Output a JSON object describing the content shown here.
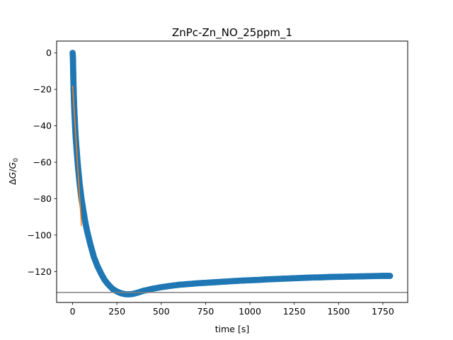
{
  "chart_data": {
    "type": "scatter",
    "title": "ZnPc-Zn_NO_25ppm_1",
    "xlabel": "time [s]",
    "ylabel_parts": [
      "Δ",
      "G",
      "/",
      "G",
      "0"
    ],
    "xlim": [
      -90,
      1890
    ],
    "ylim": [
      -137,
      6.5
    ],
    "xticks": [
      0,
      250,
      500,
      750,
      1000,
      1250,
      1500,
      1750
    ],
    "yticks": [
      0,
      -20,
      -40,
      -60,
      -80,
      -100,
      -120
    ],
    "xtick_labels": [
      "0",
      "250",
      "500",
      "750",
      "1000",
      "1250",
      "1500",
      "1750"
    ],
    "ytick_labels": [
      "0",
      "−20",
      "−40",
      "−60",
      "−80",
      "−100",
      "−120"
    ],
    "grid": false,
    "legend": "none",
    "series": [
      {
        "kind": "scatter",
        "color": "#1f77b4",
        "x": [
          0,
          1,
          2,
          3,
          4,
          5,
          6,
          8,
          10,
          12,
          15,
          18,
          21,
          25,
          30,
          35,
          40,
          45,
          50,
          60,
          70,
          80,
          90,
          100,
          120,
          140,
          160,
          180,
          200,
          225,
          250,
          275,
          300,
          325,
          340,
          360,
          380,
          400,
          450,
          500,
          550,
          600,
          650,
          700,
          750,
          800,
          850,
          900,
          950,
          1000,
          1050,
          1100,
          1150,
          1200,
          1250,
          1300,
          1350,
          1400,
          1450,
          1500,
          1550,
          1600,
          1650,
          1700,
          1750,
          1790
        ],
        "y": [
          0,
          -1,
          -3,
          -8,
          -13,
          -17,
          -21,
          -27,
          -32,
          -36,
          -42,
          -47,
          -51,
          -56,
          -62,
          -67,
          -72,
          -76,
          -80,
          -86,
          -92,
          -97,
          -101,
          -105,
          -112,
          -117,
          -121,
          -124.5,
          -127,
          -129.5,
          -131,
          -132,
          -132.5,
          -132.5,
          -132.3,
          -131.8,
          -131.2,
          -130.6,
          -129.5,
          -128.6,
          -127.9,
          -127.3,
          -126.9,
          -126.5,
          -126.2,
          -125.9,
          -125.6,
          -125.3,
          -125.0,
          -124.8,
          -124.6,
          -124.3,
          -124.1,
          -123.9,
          -123.7,
          -123.5,
          -123.3,
          -123.2,
          -123.0,
          -122.9,
          -122.8,
          -122.7,
          -122.6,
          -122.5,
          -122.4,
          -122.4
        ]
      },
      {
        "kind": "line",
        "color": "#ff7f0e",
        "x": [
          0,
          50
        ],
        "y": [
          -18,
          -95
        ]
      },
      {
        "kind": "hline",
        "color": "#808080",
        "y": -131.5
      }
    ]
  }
}
